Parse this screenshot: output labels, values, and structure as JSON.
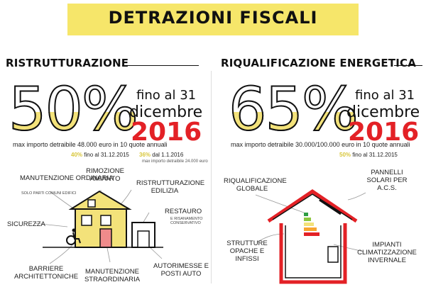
{
  "header": {
    "title": "DETRAZIONI FISCALI"
  },
  "left": {
    "title": "RISTRUTTURAZIONE",
    "big_percent": "50%",
    "deadline": "fino al 31",
    "month": "dicembre",
    "year": "2016",
    "max_text": "max importo detraibile 48.000 euro in 10 quote annuali",
    "rate1_pct": "40%",
    "rate1_text": "fino al 31.12.2015",
    "rate2_pct": "36%",
    "rate2_text": "dal 1.1.2016",
    "rate2_sub": "max importo detraibile 24.000 euro",
    "labels": {
      "manutenzione_ordinaria": "MANUTENZIONE ORDINARIA",
      "manutenzione_ordinaria_sub": "SOLO PARTI COMUNI EDIFICI",
      "rimozione_amianto": "RIMOZIONE AMIANTO",
      "ristrutturazione_edilizia": "RISTRUTTURAZIONE EDILIZIA",
      "sicurezza": "SICUREZZA",
      "restauro": "RESTAURO",
      "restauro_sub": "E RISANAMENTO CONSERVATIVO",
      "barriere": "BARRIERE ARCHITETTONICHE",
      "manutenzione_straordinaria": "MANUTENZIONE STRAORDINARIA",
      "autorimesse": "AUTORIMESSE E POSTI AUTO"
    }
  },
  "right": {
    "title": "RIQUALIFICAZIONE ENERGETICA",
    "big_percent": "65%",
    "deadline": "fino al 31",
    "month": "dicembre",
    "year": "2016",
    "max_text": "max importo detraibile 30.000/100.000 euro in 10 quote annuali",
    "rate_pct": "50%",
    "rate_text": "fino al 31.12.2015",
    "labels": {
      "riqualificazione_globale": "RIQUALIFICAZIONE GLOBALE",
      "pannelli_solari": "PANNELLI SOLARI PER A.C.S.",
      "strutture_opache": "STRUTTURE OPACHE E INFISSI",
      "impianti": "IMPIANTI CLIMATIZZAZIONE INVERNALE"
    }
  },
  "colors": {
    "banner": "#f6e66a",
    "accent_yellow": "#f3e27a",
    "red": "#e32126"
  }
}
